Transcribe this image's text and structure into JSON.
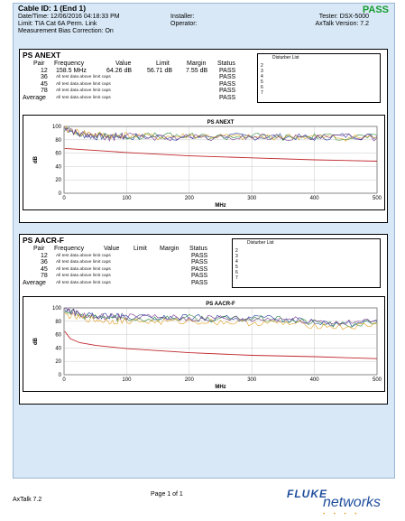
{
  "header": {
    "cable_id": "Cable ID: 1 (End 1)",
    "datetime": "Date/Time: 12/06/2016  04:18:33 PM",
    "limit": "Limit: TIA Cat 6A Perm. Link",
    "bias": "Measurement Bias Correction: On",
    "installer": "Installer:",
    "operator": "Operator:",
    "tester": "Tester: DSX-5000",
    "axtalk_version": "AxTalk Version: 7.2",
    "result": "PASS"
  },
  "anext": {
    "title": "PS ANEXT",
    "columns": [
      "Pair",
      "Frequency",
      "Value",
      "Limit",
      "Margin",
      "Status"
    ],
    "rows": [
      {
        "pair": "12",
        "frequency": "158.5 MHz",
        "value": "64.26 dB",
        "limit": "56.71 dB",
        "margin": "7.55 dB",
        "status": "PASS",
        "note": ""
      },
      {
        "pair": "36",
        "frequency": "",
        "value": "",
        "limit": "",
        "margin": "",
        "status": "PASS",
        "note": "All test data above limit caps"
      },
      {
        "pair": "45",
        "frequency": "",
        "value": "",
        "limit": "",
        "margin": "",
        "status": "PASS",
        "note": "All test data above limit caps"
      },
      {
        "pair": "78",
        "frequency": "",
        "value": "",
        "limit": "",
        "margin": "",
        "status": "PASS",
        "note": "All test data above limit caps"
      },
      {
        "pair": "Average",
        "frequency": "",
        "value": "",
        "limit": "",
        "margin": "",
        "status": "PASS",
        "note": "All test data above limit caps"
      }
    ],
    "disturber_label": "Disturber List",
    "disturbers": [
      "2",
      "3",
      "4",
      "5",
      "6",
      "7"
    ]
  },
  "aacrf": {
    "title": "PS AACR-F",
    "columns": [
      "Pair",
      "Frequency",
      "Value",
      "Limit",
      "Margin",
      "Status"
    ],
    "rows": [
      {
        "pair": "12",
        "note": "All test data above limit caps",
        "status": "PASS"
      },
      {
        "pair": "36",
        "note": "All test data above limit caps",
        "status": "PASS"
      },
      {
        "pair": "45",
        "note": "All test data above limit caps",
        "status": "PASS"
      },
      {
        "pair": "78",
        "note": "All test data above limit caps",
        "status": "PASS"
      },
      {
        "pair": "Average",
        "note": "All test data above limit caps",
        "status": "PASS"
      }
    ],
    "disturber_label": "Disturber List",
    "disturbers": [
      "2",
      "3",
      "4",
      "5",
      "6",
      "7"
    ]
  },
  "footer": {
    "app": "AxTalk 7.2",
    "page": "Page 1 of 1",
    "logo_top": "FLUKE",
    "logo_bottom": "networks"
  },
  "colors": {
    "pass": "#169c2f",
    "limit": "#c0282d",
    "sheet": "#d8e8f6",
    "logo_blue": "#1f4e9c",
    "logo_orange": "#e8a31c"
  },
  "chart_data": [
    {
      "type": "line",
      "title": "PS ANEXT",
      "xlabel": "MHz",
      "ylabel": "dB",
      "xlim": [
        0,
        500
      ],
      "ylim": [
        0,
        100
      ],
      "xticks": [
        0,
        100,
        200,
        300,
        400,
        500
      ],
      "yticks": [
        0,
        20,
        40,
        60,
        80,
        100
      ],
      "grid": true,
      "limit_line": {
        "x": [
          1,
          50,
          100,
          200,
          300,
          400,
          500
        ],
        "y": [
          67,
          64,
          61,
          56,
          53,
          50,
          48
        ]
      },
      "series": [
        {
          "color": "#1f3fa0",
          "x": [
            1,
            25,
            50,
            75,
            100,
            150,
            200,
            250,
            300,
            350,
            400,
            450,
            500
          ],
          "y": [
            97,
            88,
            84,
            86,
            84,
            85,
            83,
            86,
            84,
            85,
            83,
            86,
            85
          ]
        },
        {
          "color": "#2e8b3a",
          "x": [
            1,
            25,
            50,
            75,
            100,
            150,
            200,
            250,
            300,
            350,
            400,
            450,
            500
          ],
          "y": [
            96,
            90,
            86,
            87,
            85,
            86,
            85,
            84,
            86,
            83,
            85,
            84,
            86
          ]
        },
        {
          "color": "#e0a020",
          "x": [
            1,
            25,
            50,
            75,
            100,
            150,
            200,
            250,
            300,
            350,
            400,
            450,
            500
          ],
          "y": [
            95,
            91,
            88,
            86,
            87,
            84,
            86,
            85,
            83,
            85,
            84,
            83,
            84
          ]
        },
        {
          "color": "#7a3a8c",
          "x": [
            1,
            25,
            50,
            75,
            100,
            150,
            200,
            250,
            300,
            350,
            400,
            450,
            500
          ],
          "y": [
            98,
            89,
            85,
            83,
            86,
            83,
            84,
            82,
            85,
            84,
            82,
            85,
            83
          ]
        }
      ]
    },
    {
      "type": "line",
      "title": "PS AACR-F",
      "xlabel": "MHz",
      "ylabel": "dB",
      "xlim": [
        0,
        500
      ],
      "ylim": [
        0,
        100
      ],
      "xticks": [
        0,
        100,
        200,
        300,
        400,
        500
      ],
      "yticks": [
        0,
        20,
        40,
        60,
        80,
        100
      ],
      "grid": true,
      "limit_line": {
        "x": [
          1,
          10,
          25,
          50,
          100,
          200,
          300,
          400,
          500
        ],
        "y": [
          65,
          54,
          48,
          44,
          39,
          33,
          29,
          27,
          24
        ]
      },
      "series": [
        {
          "color": "#1f3fa0",
          "x": [
            1,
            25,
            50,
            75,
            100,
            150,
            200,
            250,
            300,
            350,
            400,
            450,
            500
          ],
          "y": [
            98,
            90,
            87,
            88,
            86,
            85,
            86,
            84,
            85,
            83,
            80,
            76,
            80
          ]
        },
        {
          "color": "#2e8b3a",
          "x": [
            1,
            25,
            50,
            75,
            100,
            150,
            200,
            250,
            300,
            350,
            400,
            450,
            500
          ],
          "y": [
            97,
            89,
            85,
            86,
            84,
            84,
            85,
            83,
            84,
            82,
            78,
            74,
            79
          ]
        },
        {
          "color": "#e0a020",
          "x": [
            1,
            25,
            50,
            75,
            100,
            150,
            200,
            250,
            300,
            350,
            400,
            450,
            500
          ],
          "y": [
            90,
            85,
            82,
            80,
            81,
            79,
            80,
            79,
            78,
            77,
            74,
            71,
            75
          ]
        },
        {
          "color": "#7a3a8c",
          "x": [
            1,
            25,
            50,
            75,
            100,
            150,
            200,
            250,
            300,
            350,
            400,
            450,
            500
          ],
          "y": [
            99,
            91,
            86,
            87,
            87,
            86,
            84,
            85,
            83,
            84,
            81,
            77,
            82
          ]
        }
      ]
    }
  ]
}
